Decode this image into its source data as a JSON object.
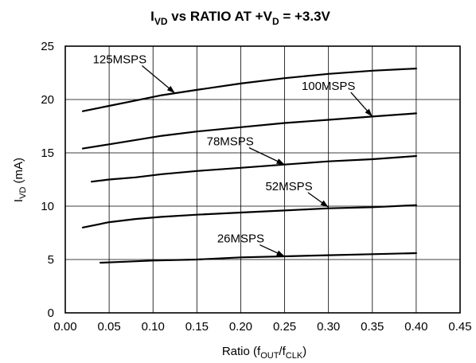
{
  "chart_data": {
    "type": "line",
    "title": {
      "prefix": "I",
      "prefix_sub": "VD",
      "middle": " vs RATIO AT +V",
      "middle_sub": "D",
      "suffix": " = +3.3V"
    },
    "xlabel": {
      "main": "Ratio (f",
      "sub1": "OUT",
      "mid": "/f",
      "sub2": "CLK",
      "end": ")"
    },
    "ylabel": {
      "main": "I",
      "sub": "VD",
      "end": " (mA)"
    },
    "xlim": [
      0.0,
      0.45
    ],
    "ylim": [
      0,
      25
    ],
    "xticks": [
      "0.00",
      "0.05",
      "0.10",
      "0.15",
      "0.20",
      "0.25",
      "0.30",
      "0.35",
      "0.40",
      "0.45"
    ],
    "yticks": [
      "0",
      "5",
      "10",
      "15",
      "20",
      "25"
    ],
    "grid": true,
    "series": [
      {
        "name": "125MSPS",
        "label_anchor": [
          0.062,
          23.4
        ],
        "arrow_to": [
          0.125,
          20.6
        ],
        "points": [
          [
            0.02,
            18.9
          ],
          [
            0.05,
            19.4
          ],
          [
            0.08,
            19.9
          ],
          [
            0.11,
            20.4
          ],
          [
            0.15,
            20.9
          ],
          [
            0.2,
            21.5
          ],
          [
            0.25,
            22.0
          ],
          [
            0.3,
            22.4
          ],
          [
            0.35,
            22.7
          ],
          [
            0.4,
            22.9
          ]
        ]
      },
      {
        "name": "100MSPS",
        "label_anchor": [
          0.3,
          20.9
        ],
        "arrow_to": [
          0.35,
          18.4
        ],
        "points": [
          [
            0.02,
            15.4
          ],
          [
            0.05,
            15.8
          ],
          [
            0.08,
            16.2
          ],
          [
            0.11,
            16.6
          ],
          [
            0.15,
            17.0
          ],
          [
            0.2,
            17.4
          ],
          [
            0.25,
            17.8
          ],
          [
            0.3,
            18.1
          ],
          [
            0.35,
            18.4
          ],
          [
            0.4,
            18.7
          ]
        ]
      },
      {
        "name": "78MSPS",
        "label_anchor": [
          0.188,
          15.7
        ],
        "arrow_to": [
          0.25,
          13.9
        ],
        "points": [
          [
            0.03,
            12.3
          ],
          [
            0.05,
            12.5
          ],
          [
            0.08,
            12.7
          ],
          [
            0.11,
            13.0
          ],
          [
            0.15,
            13.3
          ],
          [
            0.2,
            13.6
          ],
          [
            0.25,
            13.9
          ],
          [
            0.3,
            14.2
          ],
          [
            0.35,
            14.4
          ],
          [
            0.4,
            14.7
          ]
        ]
      },
      {
        "name": "52MSPS",
        "label_anchor": [
          0.255,
          11.5
        ],
        "arrow_to": [
          0.3,
          9.9
        ],
        "points": [
          [
            0.02,
            8.0
          ],
          [
            0.05,
            8.5
          ],
          [
            0.08,
            8.8
          ],
          [
            0.11,
            9.0
          ],
          [
            0.15,
            9.2
          ],
          [
            0.2,
            9.4
          ],
          [
            0.25,
            9.6
          ],
          [
            0.3,
            9.8
          ],
          [
            0.35,
            9.9
          ],
          [
            0.4,
            10.1
          ]
        ]
      },
      {
        "name": "26MSPS",
        "label_anchor": [
          0.2,
          6.6
        ],
        "arrow_to": [
          0.25,
          5.3
        ],
        "points": [
          [
            0.04,
            4.7
          ],
          [
            0.07,
            4.8
          ],
          [
            0.1,
            4.9
          ],
          [
            0.15,
            5.0
          ],
          [
            0.2,
            5.2
          ],
          [
            0.25,
            5.3
          ],
          [
            0.3,
            5.4
          ],
          [
            0.35,
            5.5
          ],
          [
            0.4,
            5.6
          ]
        ]
      }
    ]
  }
}
